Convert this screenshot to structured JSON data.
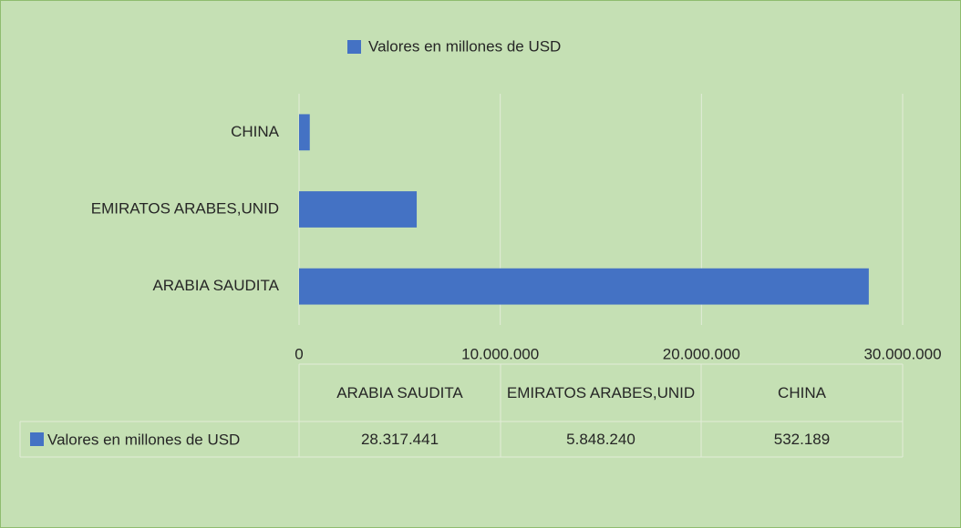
{
  "chart_data": {
    "type": "bar",
    "orientation": "horizontal",
    "categories": [
      "ARABIA SAUDITA",
      "EMIRATOS ARABES,UNID",
      "CHINA"
    ],
    "series": [
      {
        "name": "Valores en millones de USD",
        "color": "#4472c4",
        "values": [
          28317441,
          5848240,
          532189
        ],
        "value_labels": [
          "28.317.441",
          "5.848.240",
          "532.189"
        ]
      }
    ],
    "xlim": [
      0,
      30000000
    ],
    "xticks": [
      0,
      {
        "value": 10000000,
        "label": "10.000.000"
      },
      {
        "value": 20000000,
        "label": "20.000.000"
      },
      {
        "value": 30000000,
        "label": "30.000.000"
      }
    ],
    "grid": true,
    "legend": "top",
    "data_table": true
  }
}
